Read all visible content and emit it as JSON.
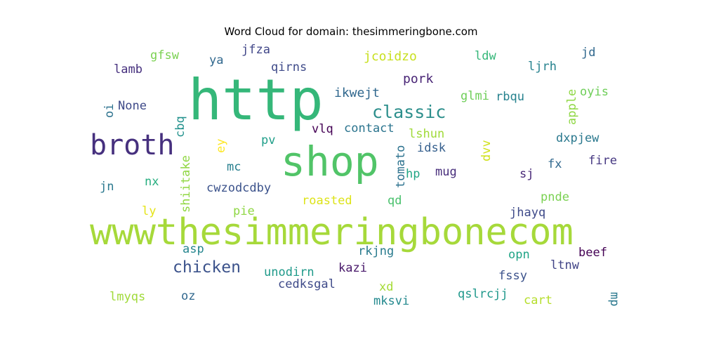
{
  "chart_data": {
    "type": "wordcloud",
    "title": "Word Cloud for domain: thesimmeringbone.com",
    "words": [
      {
        "text": "wwwthesimmeringbonecom",
        "color": "#a6d93a"
      },
      {
        "text": "http",
        "color": "#35b779"
      },
      {
        "text": "shop",
        "color": "#51c468"
      },
      {
        "text": "broth",
        "color": "#46307e"
      },
      {
        "text": "classic",
        "color": "#2d8f8c"
      },
      {
        "text": "chicken",
        "color": "#3b528b"
      },
      {
        "text": "ikwejt",
        "color": "#31688e"
      },
      {
        "text": "pork",
        "color": "#482475"
      },
      {
        "text": "contact",
        "color": "#2b748e"
      },
      {
        "text": "vlq",
        "color": "#440154"
      },
      {
        "text": "jcoidzo",
        "color": "#c8e020"
      },
      {
        "text": "qirns",
        "color": "#3e4a89"
      },
      {
        "text": "jfza",
        "color": "#404688"
      },
      {
        "text": "gfsw",
        "color": "#7ad151"
      },
      {
        "text": "lamb",
        "color": "#46307e"
      },
      {
        "text": "ya",
        "color": "#31688e"
      },
      {
        "text": "ldw",
        "color": "#35b779"
      },
      {
        "text": "ljrh",
        "color": "#26828e"
      },
      {
        "text": "jd",
        "color": "#31688e"
      },
      {
        "text": "oyis",
        "color": "#6ece58"
      },
      {
        "text": "glmi",
        "color": "#6ece58"
      },
      {
        "text": "rbqu",
        "color": "#26828e"
      },
      {
        "text": "apple",
        "color": "#8fd744"
      },
      {
        "text": "None",
        "color": "#3e4a89"
      },
      {
        "text": "oi",
        "color": "#2c728e"
      },
      {
        "text": "cbq",
        "color": "#21918c"
      },
      {
        "text": "ey",
        "color": "#fde725"
      },
      {
        "text": "pv",
        "color": "#1f9e89"
      },
      {
        "text": "lshun",
        "color": "#a0da39"
      },
      {
        "text": "idsk",
        "color": "#355f8d"
      },
      {
        "text": "dxpjew",
        "color": "#2a788e"
      },
      {
        "text": "dvv",
        "color": "#d0e11c"
      },
      {
        "text": "tomato",
        "color": "#2c728e"
      },
      {
        "text": "fx",
        "color": "#31688e"
      },
      {
        "text": "fire",
        "color": "#453781"
      },
      {
        "text": "shiitake",
        "color": "#90d743"
      },
      {
        "text": "mc",
        "color": "#277f8e"
      },
      {
        "text": "hp",
        "color": "#22a785"
      },
      {
        "text": "mug",
        "color": "#472d7b"
      },
      {
        "text": "sj",
        "color": "#482878"
      },
      {
        "text": "jn",
        "color": "#2a788e"
      },
      {
        "text": "nx",
        "color": "#28ae80"
      },
      {
        "text": "cwzodcdby",
        "color": "#3b528b"
      },
      {
        "text": "roasted",
        "color": "#dde318"
      },
      {
        "text": "pnde",
        "color": "#7ad151"
      },
      {
        "text": "ly",
        "color": "#e5e419"
      },
      {
        "text": "pie",
        "color": "#8fd744"
      },
      {
        "text": "qd",
        "color": "#4ac16d"
      },
      {
        "text": "jhayq",
        "color": "#3e4a89"
      },
      {
        "text": "asp",
        "color": "#25858e"
      },
      {
        "text": "rkjng",
        "color": "#297b8e"
      },
      {
        "text": "opn",
        "color": "#20a486"
      },
      {
        "text": "beef",
        "color": "#440154"
      },
      {
        "text": "unodirn",
        "color": "#1f9a8a"
      },
      {
        "text": "kazi",
        "color": "#48186a"
      },
      {
        "text": "ltnw",
        "color": "#414487"
      },
      {
        "text": "fssy",
        "color": "#3b528b"
      },
      {
        "text": "cedksgal",
        "color": "#3e4a89"
      },
      {
        "text": "lmyqs",
        "color": "#a0da39"
      },
      {
        "text": "oz",
        "color": "#31688e"
      },
      {
        "text": "xd",
        "color": "#a5db36"
      },
      {
        "text": "mksvi",
        "color": "#23898e"
      },
      {
        "text": "qslrcjj",
        "color": "#1f988b"
      },
      {
        "text": "cart",
        "color": "#b5de2b"
      },
      {
        "text": "mp",
        "color": "#2a788e"
      }
    ]
  }
}
